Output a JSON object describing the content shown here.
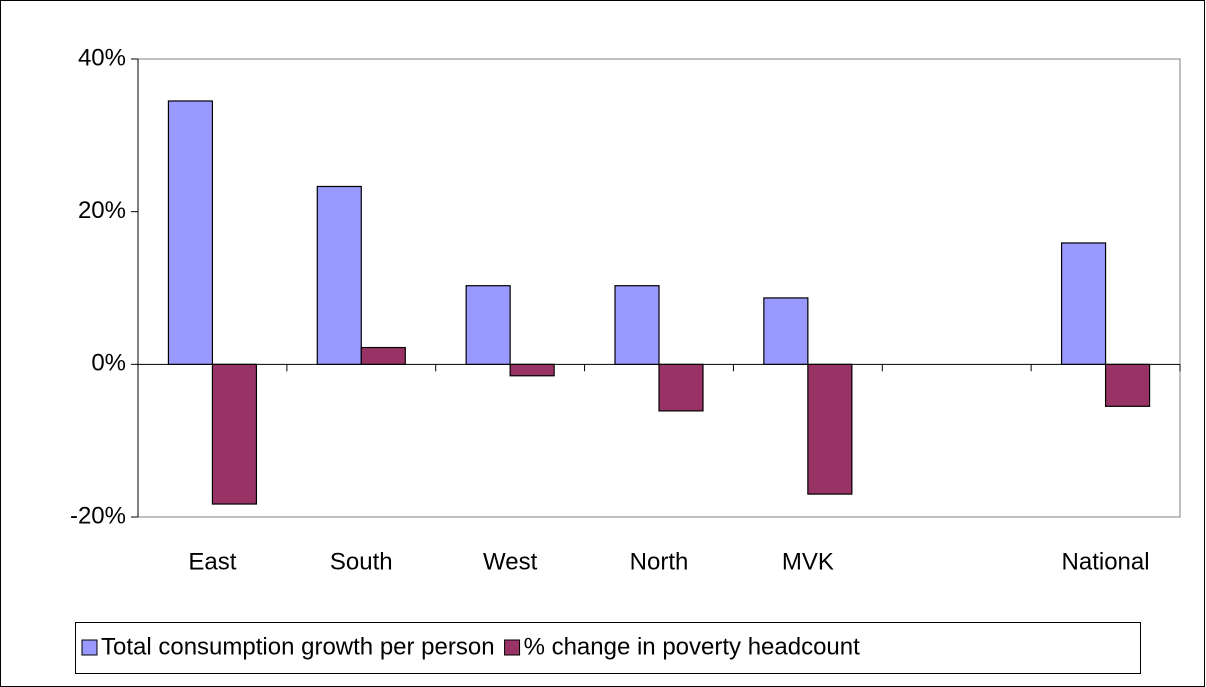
{
  "chart_data": {
    "type": "bar",
    "categories": [
      "East",
      "South",
      "West",
      "North",
      "MVK",
      null,
      "National"
    ],
    "series": [
      {
        "name": "Total consumption growth per person",
        "color": "#9999ff",
        "values": [
          34.5,
          23.3,
          10.3,
          10.3,
          8.7,
          null,
          15.9
        ]
      },
      {
        "name": "% change in poverty headcount",
        "color": "#993366",
        "values": [
          -18.3,
          2.2,
          -1.5,
          -6.1,
          -17.0,
          null,
          -5.5
        ]
      }
    ],
    "ylim": [
      -20,
      40
    ],
    "yticks": [
      {
        "value": -20,
        "label": "-20%"
      },
      {
        "value": 0,
        "label": "0%"
      },
      {
        "value": 20,
        "label": "20%"
      },
      {
        "value": 40,
        "label": "40%"
      }
    ],
    "legend": "bottom"
  }
}
